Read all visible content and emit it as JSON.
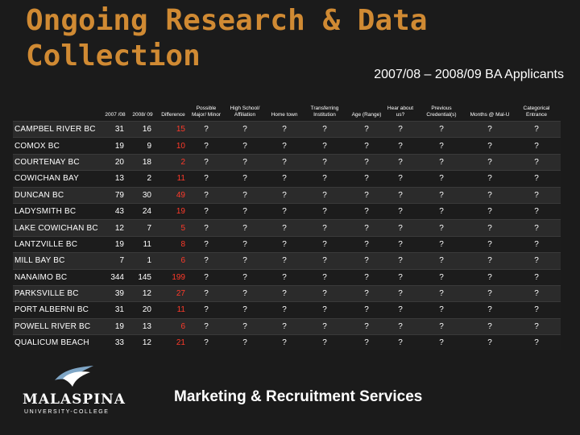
{
  "slide": {
    "title_line1": "Ongoing Research & Data",
    "title_line2": "Collection",
    "subtitle": "2007/08 – 2008/09 BA Applicants",
    "footer": "Marketing & Recruitment Services"
  },
  "logo": {
    "name": "MALASPINA",
    "sub": "UNIVERSITY-COLLEGE"
  },
  "table": {
    "headers": [
      "",
      "2007 /08",
      "2008/ 09",
      "Difference",
      "Possible Major/ Minor",
      "High School/ Affiliation",
      "Home town",
      "Transferring Institution",
      "Age (Range)",
      "Hear about us?",
      "Previous Credential(s)",
      "Months @ Mal-U",
      "Categorical Entrance"
    ],
    "rows": [
      [
        "CAMPBEL RIVER BC",
        "31",
        "16",
        "15",
        "?",
        "?",
        "?",
        "?",
        "?",
        "?",
        "?",
        "?",
        "?"
      ],
      [
        "COMOX BC",
        "19",
        "9",
        "10",
        "?",
        "?",
        "?",
        "?",
        "?",
        "?",
        "?",
        "?",
        "?"
      ],
      [
        "COURTENAY BC",
        "20",
        "18",
        "2",
        "?",
        "?",
        "?",
        "?",
        "?",
        "?",
        "?",
        "?",
        "?"
      ],
      [
        "COWICHAN BAY",
        "13",
        "2",
        "11",
        "?",
        "?",
        "?",
        "?",
        "?",
        "?",
        "?",
        "?",
        "?"
      ],
      [
        "DUNCAN BC",
        "79",
        "30",
        "49",
        "?",
        "?",
        "?",
        "?",
        "?",
        "?",
        "?",
        "?",
        "?"
      ],
      [
        "LADYSMITH BC",
        "43",
        "24",
        "19",
        "?",
        "?",
        "?",
        "?",
        "?",
        "?",
        "?",
        "?",
        "?"
      ],
      [
        "LAKE COWICHAN BC",
        "12",
        "7",
        "5",
        "?",
        "?",
        "?",
        "?",
        "?",
        "?",
        "?",
        "?",
        "?"
      ],
      [
        "LANTZVILLE BC",
        "19",
        "11",
        "8",
        "?",
        "?",
        "?",
        "?",
        "?",
        "?",
        "?",
        "?",
        "?"
      ],
      [
        "MILL BAY BC",
        "7",
        "1",
        "6",
        "?",
        "?",
        "?",
        "?",
        "?",
        "?",
        "?",
        "?",
        "?"
      ],
      [
        "NANAIMO BC",
        "344",
        "145",
        "199",
        "?",
        "?",
        "?",
        "?",
        "?",
        "?",
        "?",
        "?",
        "?"
      ],
      [
        "PARKSVILLE BC",
        "39",
        "12",
        "27",
        "?",
        "?",
        "?",
        "?",
        "?",
        "?",
        "?",
        "?",
        "?"
      ],
      [
        "PORT ALBERNI BC",
        "31",
        "20",
        "11",
        "?",
        "?",
        "?",
        "?",
        "?",
        "?",
        "?",
        "?",
        "?"
      ],
      [
        "POWELL RIVER BC",
        "19",
        "13",
        "6",
        "?",
        "?",
        "?",
        "?",
        "?",
        "?",
        "?",
        "?",
        "?"
      ],
      [
        "QUALICUM BEACH",
        "33",
        "12",
        "21",
        "?",
        "?",
        "?",
        "?",
        "?",
        "?",
        "?",
        "?",
        "?"
      ]
    ]
  },
  "colors": {
    "title": "#d08a33",
    "difference": "#ff3a2a",
    "background": "#1b1b1b"
  }
}
